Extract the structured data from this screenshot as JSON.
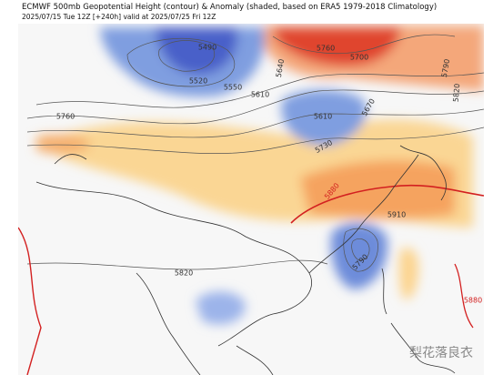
{
  "header": {
    "title": "ECMWF 500mb Geopotential Height (contour) & Anomaly (shaded, based on ERA5 1979-2018 Climatology)",
    "subtitle": "2025/07/15 Tue 12Z [+240h] valid at 2025/07/25 Fri 12Z"
  },
  "contour_labels": [
    "5490",
    "5520",
    "5550",
    "5610",
    "5640",
    "5760",
    "5700",
    "5790",
    "5820",
    "5610",
    "5670",
    "5730",
    "5760",
    "5880",
    "5910",
    "5790",
    "5820",
    "5880"
  ],
  "watermark": "梨花落良衣"
}
